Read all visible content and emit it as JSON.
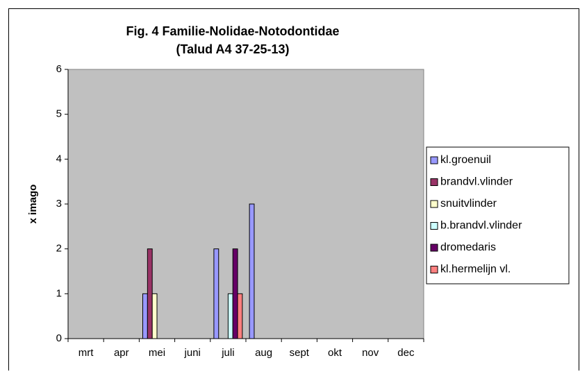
{
  "chart_data": {
    "type": "bar",
    "title": [
      "Fig. 4 Familie-Nolidae-Notodontidae",
      "(Talud A4 37-25-13)"
    ],
    "y_label": "x imago",
    "categories": [
      "mrt",
      "apr",
      "mei",
      "juni",
      "juli",
      "aug",
      "sept",
      "okt",
      "nov",
      "dec"
    ],
    "series": [
      {
        "name": "kl.groenuil",
        "color": "#9999ff",
        "values": [
          0,
          0,
          1,
          0,
          2,
          3,
          0,
          0,
          0,
          0
        ]
      },
      {
        "name": "brandvl.vlinder",
        "color": "#993366",
        "values": [
          0,
          0,
          2,
          0,
          0,
          0,
          0,
          0,
          0,
          0
        ]
      },
      {
        "name": "snuitvlinder",
        "color": "#ffffcc",
        "values": [
          0,
          0,
          1,
          0,
          0,
          0,
          0,
          0,
          0,
          0
        ]
      },
      {
        "name": "b.brandvl.vlinder",
        "color": "#ccffff",
        "values": [
          0,
          0,
          0,
          0,
          1,
          0,
          0,
          0,
          0,
          0
        ]
      },
      {
        "name": "dromedaris",
        "color": "#660066",
        "values": [
          0,
          0,
          0,
          0,
          2,
          0,
          0,
          0,
          0,
          0
        ]
      },
      {
        "name": "kl.hermelijn vl.",
        "color": "#ff8080",
        "values": [
          0,
          0,
          0,
          0,
          1,
          0,
          0,
          0,
          0,
          0
        ]
      }
    ],
    "ylim": [
      0,
      6
    ],
    "yticks": [
      0,
      1,
      2,
      3,
      4,
      5,
      6
    ],
    "legend": "right",
    "plot_background": "#c0c0c0"
  }
}
